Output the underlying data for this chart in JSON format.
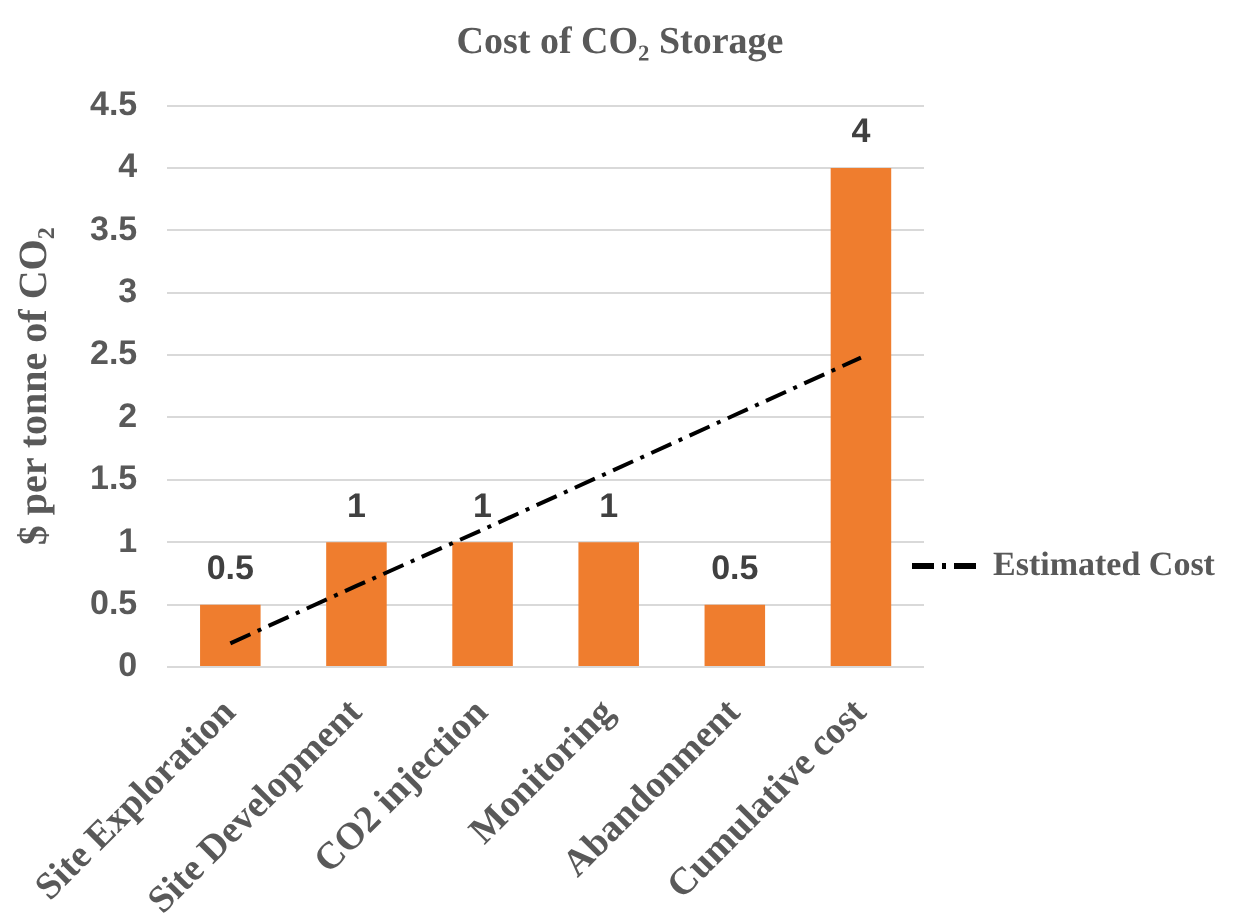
{
  "chart_data": {
    "type": "bar",
    "title": "Cost of CO₂ Storage",
    "ylabel": "$ per tonne of CO₂",
    "categories": [
      "Site Exploration",
      "Site Development",
      "CO2 injection",
      "Monitoring",
      "Abandonment",
      "Cumulative cost"
    ],
    "series": [
      {
        "color": "#ef7d2e",
        "values": [
          0.5,
          1,
          1,
          1,
          0.5,
          4
        ],
        "value_labels": [
          "0.5",
          "1",
          "1",
          "1",
          "0.5",
          "4"
        ]
      },
      {
        "type": "line",
        "name": "Estimated Cost",
        "color": "#000000",
        "line_style": "dashed",
        "marker": "none",
        "values": [
          0.19,
          0.65,
          1.1,
          1.56,
          2.02,
          2.48
        ]
      }
    ],
    "ylim": [
      0,
      4.5
    ],
    "yticks": [
      0,
      0.5,
      1,
      1.5,
      2,
      2.5,
      3,
      3.5,
      4,
      4.5
    ],
    "grid": "y",
    "legend": "right"
  }
}
